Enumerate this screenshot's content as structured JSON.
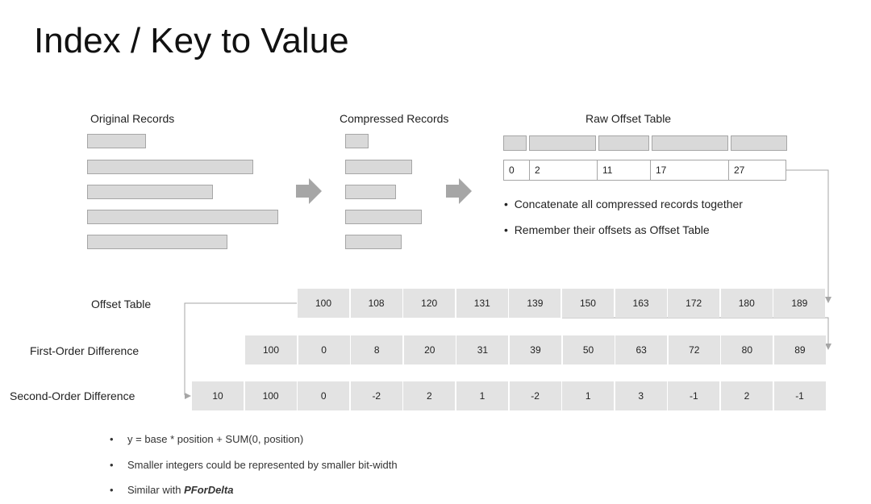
{
  "title": "Index / Key to Value",
  "headers": {
    "original": "Original Records",
    "compressed": "Compressed Records",
    "raw_offset": "Raw Offset Table"
  },
  "raw_offsets": [
    "0",
    "2",
    "11",
    "17",
    "27"
  ],
  "bullets": [
    "Concatenate all compressed records together",
    "Remember their offsets as Offset Table"
  ],
  "rows": {
    "offset_table": {
      "label": "Offset Table",
      "values": [
        "100",
        "108",
        "120",
        "131",
        "139",
        "150",
        "163",
        "172",
        "180",
        "189"
      ]
    },
    "first_order": {
      "label": "First-Order Difference",
      "values": [
        "100",
        "0",
        "8",
        "20",
        "31",
        "39",
        "50",
        "63",
        "72",
        "80",
        "89"
      ]
    },
    "second_order": {
      "label": "Second-Order Difference",
      "values": [
        "10",
        "100",
        "0",
        "-2",
        "2",
        "1",
        "-2",
        "1",
        "3",
        "-1",
        "2",
        "-1"
      ]
    }
  },
  "notes": [
    {
      "text": "y = base * position + SUM(0, position)"
    },
    {
      "text": "Smaller integers could be represented by smaller bit-width"
    },
    {
      "prefix": "Similar with ",
      "emph": "PForDelta"
    }
  ],
  "bullet_glyph": "•"
}
